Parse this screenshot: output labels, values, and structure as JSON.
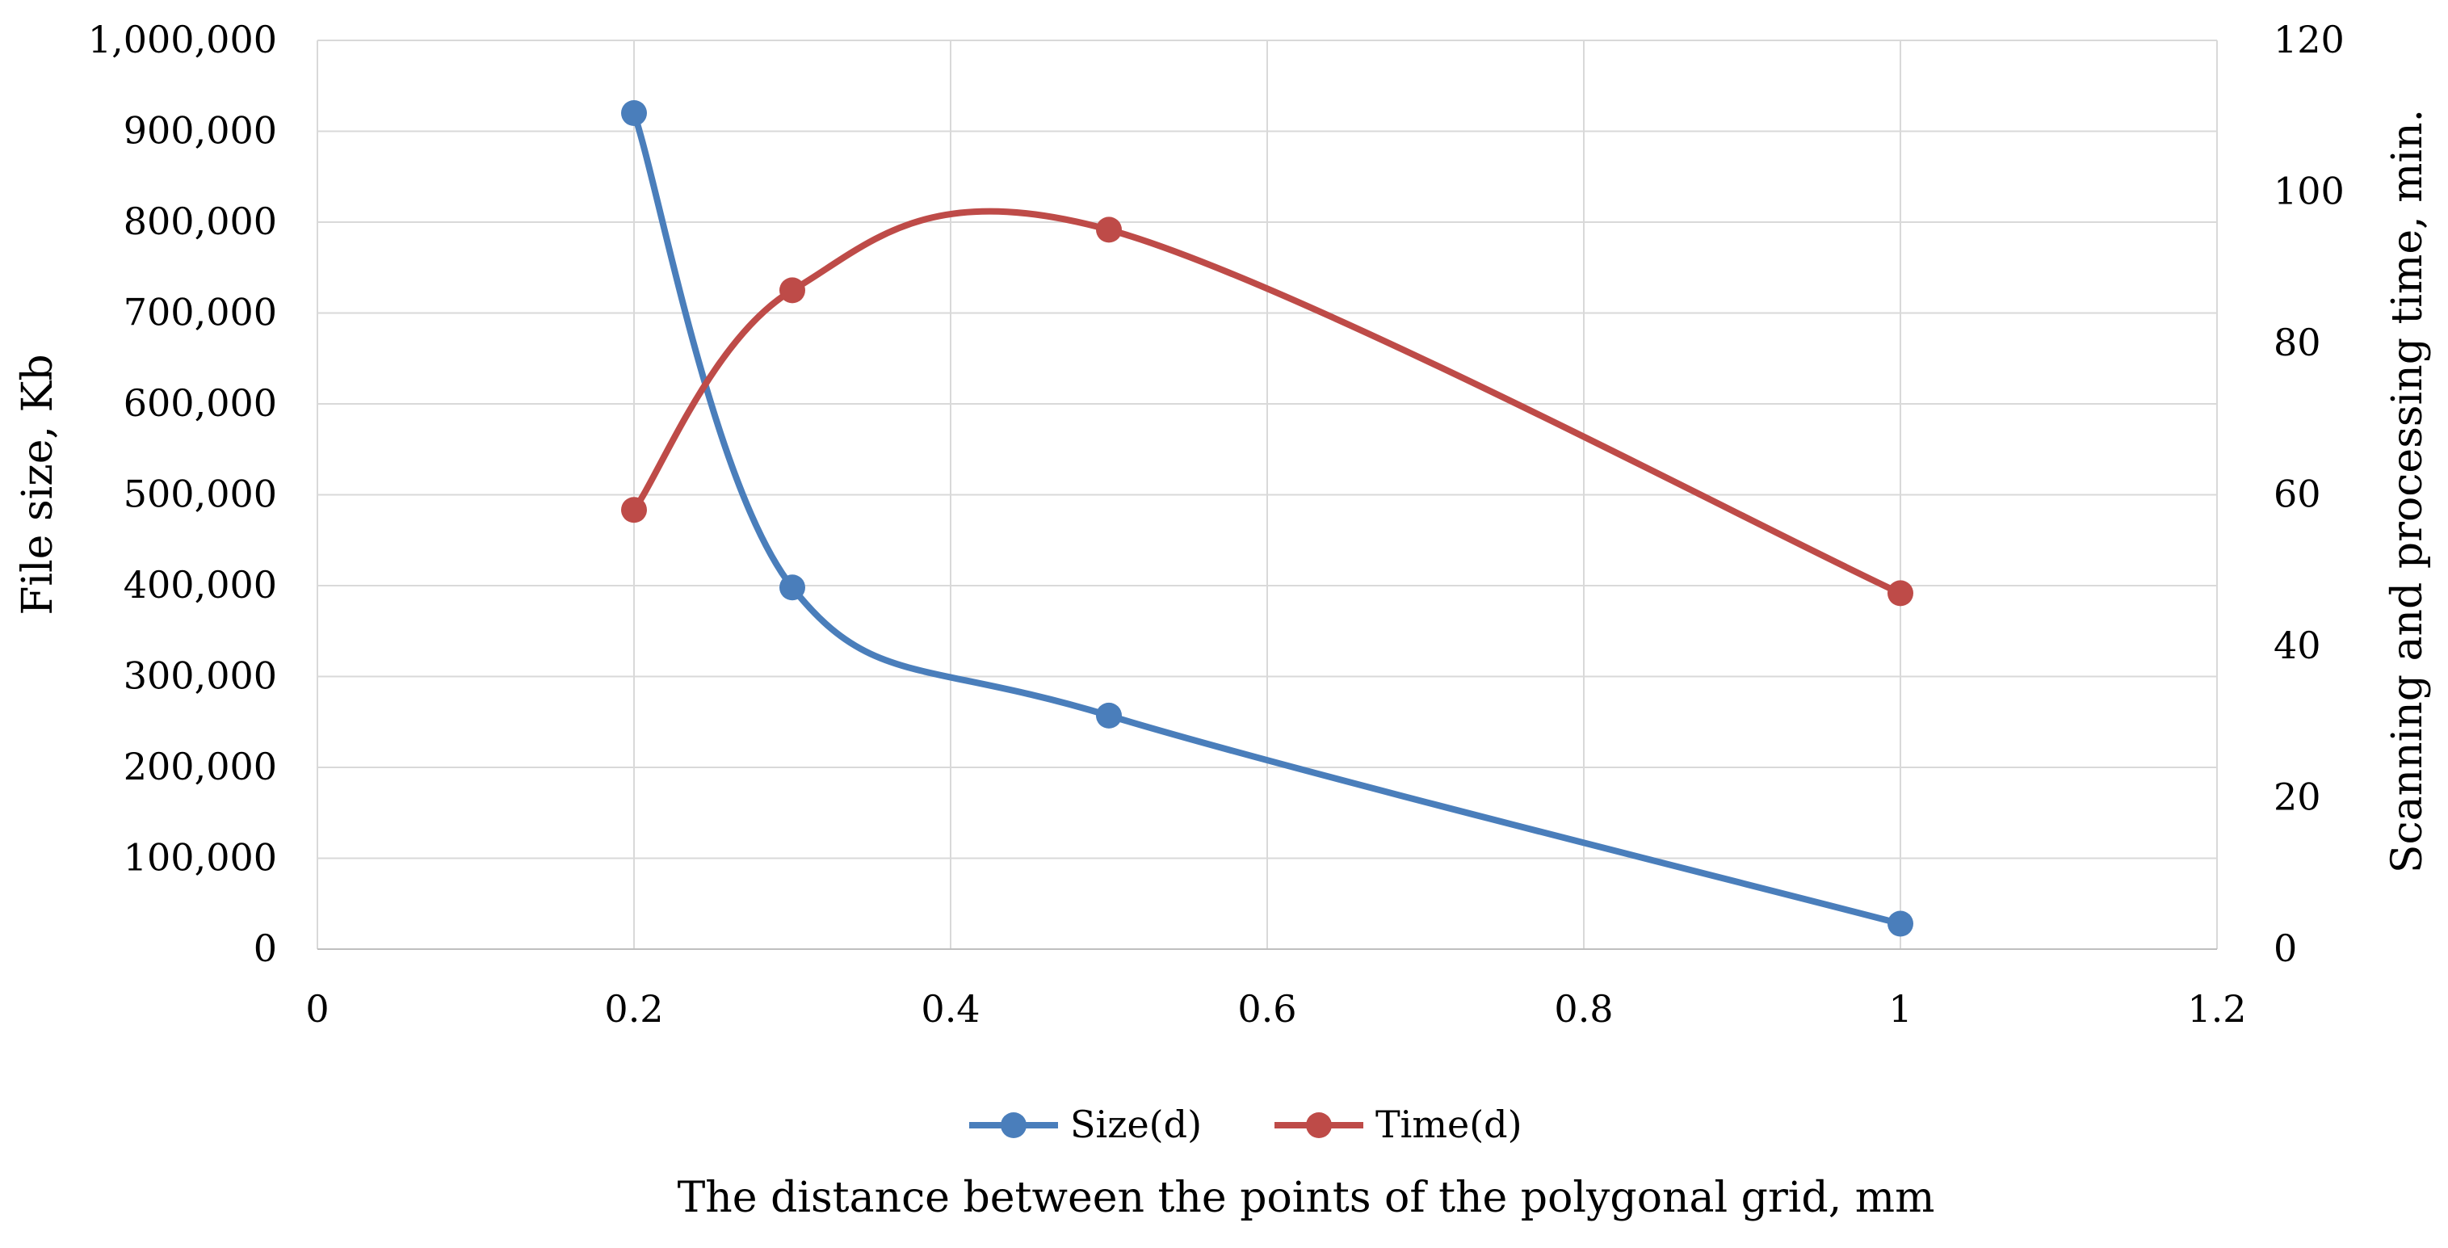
{
  "chart_data": {
    "type": "line",
    "smooth": true,
    "grid": true,
    "legend_position": "bottom",
    "x": [
      0.2,
      0.3,
      0.5,
      1
    ],
    "xlim": [
      0,
      1.2
    ],
    "x_ticks": [
      0,
      0.2,
      0.4,
      0.6,
      0.8,
      1,
      1.2
    ],
    "x_tick_labels": [
      "0",
      "0.2",
      "0.4",
      "0.6",
      "0.8",
      "1",
      "1.2"
    ],
    "xlabel": "The distance between the points of the polygonal grid, mm",
    "ylabel": "File size, Kb",
    "ylim": [
      0,
      1000000
    ],
    "y_ticks": [
      0,
      100000,
      200000,
      300000,
      400000,
      500000,
      600000,
      700000,
      800000,
      900000,
      1000000
    ],
    "y_tick_labels": [
      "0",
      "100,000",
      "200,000",
      "300,000",
      "400,000",
      "500,000",
      "600,000",
      "700,000",
      "800,000",
      "900,000",
      "1,000,000"
    ],
    "y2label": "Scanning and processing time, min.",
    "y2lim": [
      0,
      120
    ],
    "y2_ticks": [
      0,
      20,
      40,
      60,
      80,
      100,
      120
    ],
    "y2_tick_labels": [
      "0",
      "20",
      "40",
      "60",
      "80",
      "100",
      "120"
    ],
    "series": [
      {
        "name": "Size(d)",
        "axis": "left",
        "color": "#4a7ebb",
        "values": [
          920000,
          398000,
          257000,
          28000
        ]
      },
      {
        "name": "Time(d)",
        "axis": "right",
        "color": "#be4b48",
        "values": [
          58,
          87,
          95,
          47
        ]
      }
    ]
  }
}
